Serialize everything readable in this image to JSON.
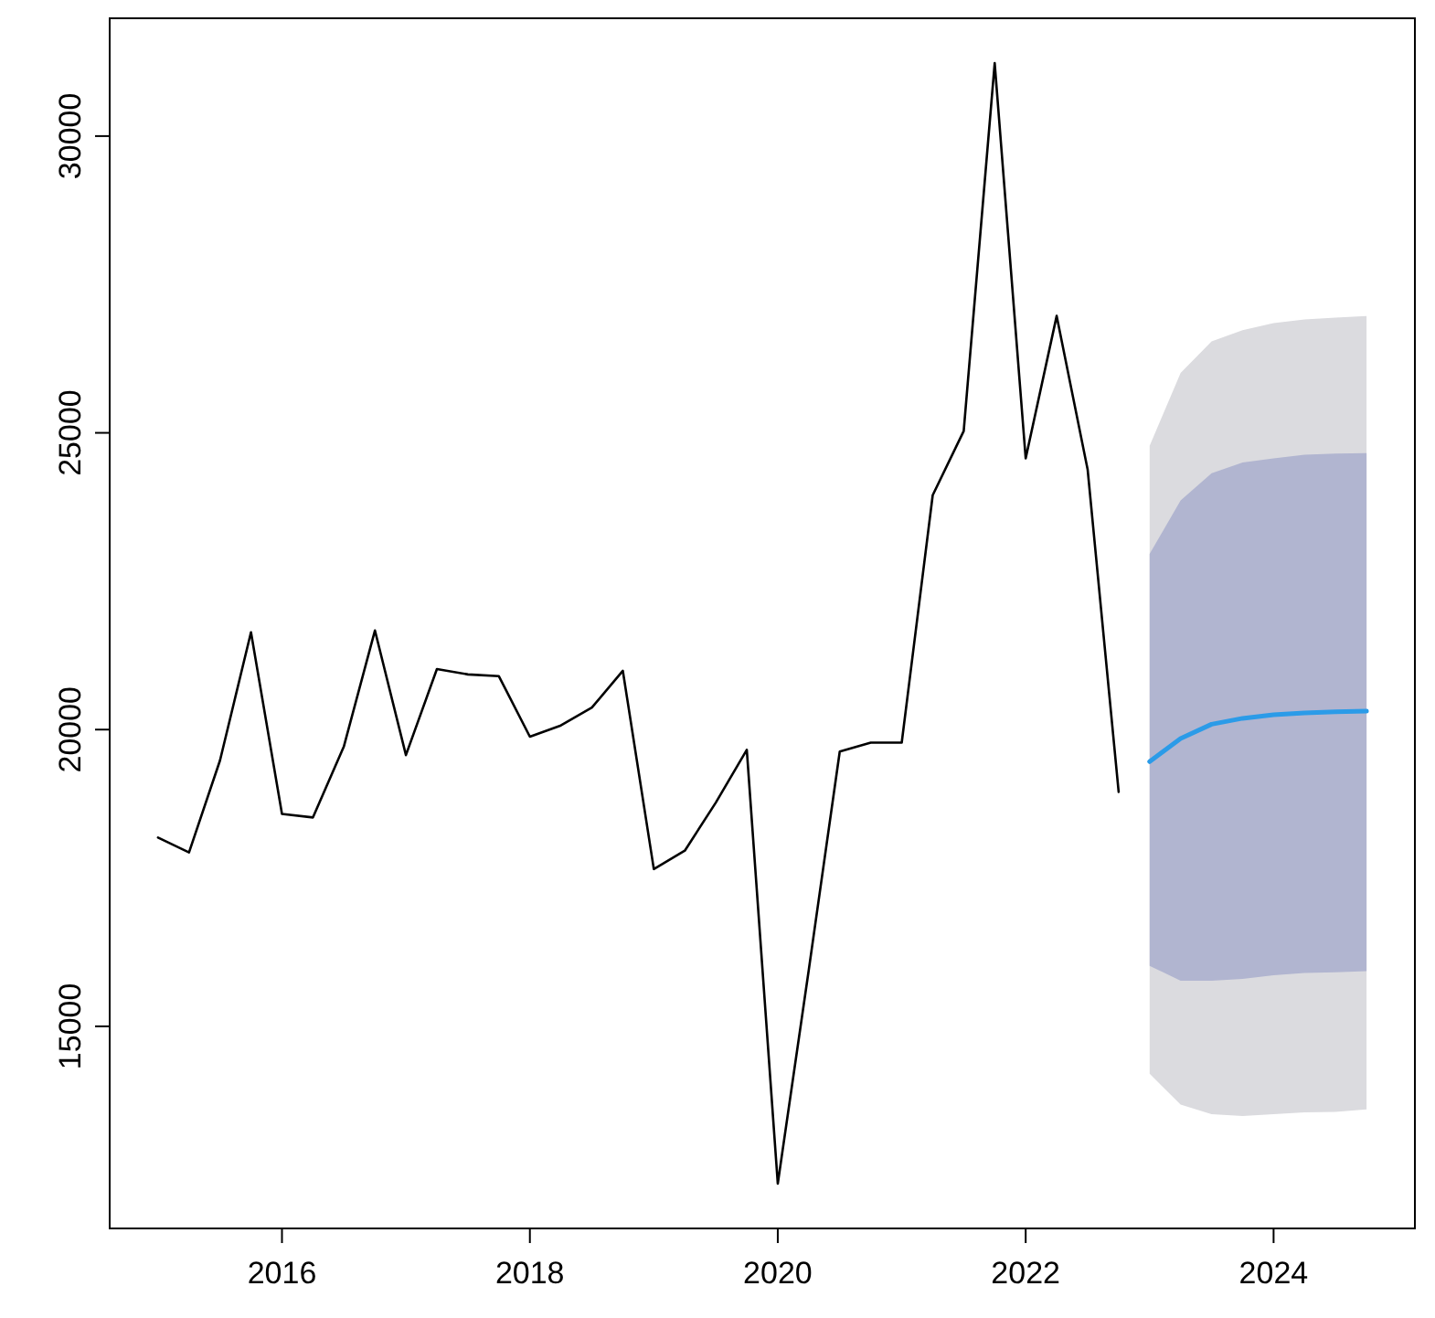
{
  "chart_data": {
    "type": "line",
    "xlim": [
      2014.61,
      2025.14
    ],
    "xticks": [
      2016,
      2018,
      2020,
      2022,
      2024
    ],
    "ylim": [
      11595,
      31985
    ],
    "yticks": [
      15000,
      20000,
      25000,
      30000
    ],
    "grid": false,
    "marker": "none",
    "line_style": "solid",
    "series": [
      {
        "color": "#000000",
        "x": [
          2015,
          2015.25,
          2015.5,
          2015.75,
          2016,
          2016.25,
          2016.5,
          2016.75,
          2017,
          2017.25,
          2017.5,
          2017.75,
          2018,
          2018.25,
          2018.5,
          2018.75,
          2019,
          2019.25,
          2019.5,
          2019.75,
          2020,
          2020.25,
          2020.5,
          2020.75,
          2021,
          2021.25,
          2021.5,
          2021.75,
          2022,
          2022.25,
          2022.5,
          2022.75
        ],
        "values": [
          18180,
          17930,
          19480,
          21640,
          18580,
          18520,
          19720,
          21670,
          19570,
          21020,
          20930,
          20900,
          19880,
          20070,
          20370,
          20990,
          17650,
          17960,
          18770,
          19660,
          12350,
          15950,
          19630,
          19780,
          19780,
          23950,
          25030,
          31230,
          24570,
          26970,
          24380,
          18950
        ]
      },
      {
        "color": "#dbdbdf",
        "x": [
          2023,
          2023.25,
          2023.5,
          2023.75,
          2024,
          2024.25,
          2024.5,
          2024.75
        ],
        "values": [
          null,
          null,
          null,
          null,
          null,
          null,
          null,
          null
        ],
        "lower": [
          14200,
          13680,
          13520,
          13490,
          13520,
          13550,
          13560,
          13600
        ],
        "upper": [
          24780,
          26010,
          26540,
          26730,
          26850,
          26910,
          26940,
          26970
        ]
      },
      {
        "color": "#b1b5d0",
        "x": [
          2023,
          2023.25,
          2023.5,
          2023.75,
          2024,
          2024.25,
          2024.5,
          2024.75
        ],
        "values": [
          null,
          null,
          null,
          null,
          null,
          null,
          null,
          null
        ],
        "lower": [
          16020,
          15770,
          15770,
          15800,
          15860,
          15900,
          15910,
          15930
        ],
        "upper": [
          22960,
          23860,
          24320,
          24500,
          24570,
          24630,
          24650,
          24660
        ]
      },
      {
        "color": "#2b9be8",
        "x": [
          2023,
          2023.25,
          2023.5,
          2023.75,
          2024,
          2024.25,
          2024.5,
          2024.75
        ],
        "values": [
          19460,
          19850,
          20090,
          20190,
          20250,
          20280,
          20300,
          20310
        ]
      }
    ]
  }
}
